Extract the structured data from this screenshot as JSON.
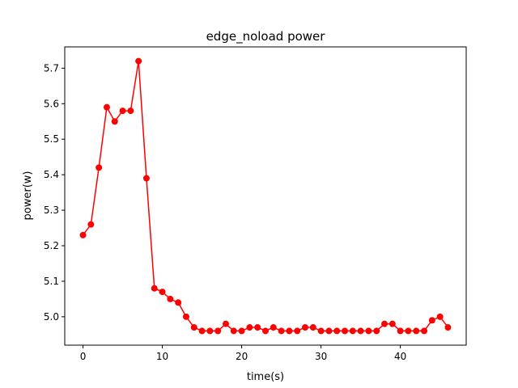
{
  "chart_data": {
    "type": "line",
    "title": "edge_noload power",
    "xlabel": "time(s)",
    "ylabel": "power(w)",
    "xlim": [
      -2.3,
      48.3
    ],
    "ylim": [
      4.92,
      5.76
    ],
    "xticks": [
      0,
      10,
      20,
      30,
      40
    ],
    "yticks": [
      5.0,
      5.1,
      5.2,
      5.3,
      5.4,
      5.5,
      5.6,
      5.7
    ],
    "grid": false,
    "series": [
      {
        "name": "power",
        "color": "#ff0000",
        "marker": "circle",
        "x": [
          0,
          1,
          2,
          3,
          4,
          5,
          6,
          7,
          8,
          9,
          10,
          11,
          12,
          13,
          14,
          15,
          16,
          17,
          18,
          19,
          20,
          21,
          22,
          23,
          24,
          25,
          26,
          27,
          28,
          29,
          30,
          31,
          32,
          33,
          34,
          35,
          36,
          37,
          38,
          39,
          40,
          41,
          42,
          43,
          44,
          45,
          46
        ],
        "values": [
          5.23,
          5.26,
          5.42,
          5.59,
          5.55,
          5.58,
          5.58,
          5.72,
          5.39,
          5.08,
          5.07,
          5.05,
          5.04,
          5.0,
          4.97,
          4.96,
          4.96,
          4.96,
          4.98,
          4.96,
          4.96,
          4.97,
          4.97,
          4.96,
          4.97,
          4.96,
          4.96,
          4.96,
          4.97,
          4.97,
          4.96,
          4.96,
          4.96,
          4.96,
          4.96,
          4.96,
          4.96,
          4.96,
          4.98,
          4.98,
          4.96,
          4.96,
          4.96,
          4.96,
          4.99,
          5.0,
          4.97
        ]
      }
    ]
  }
}
